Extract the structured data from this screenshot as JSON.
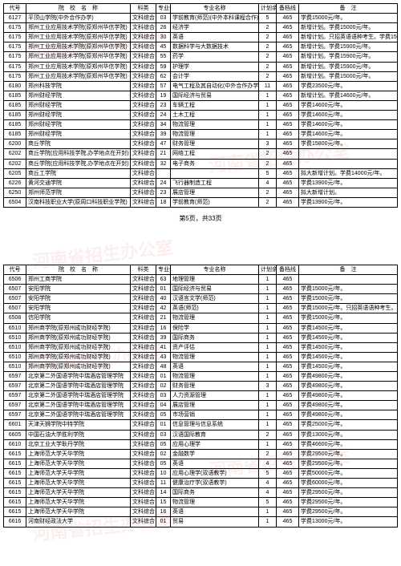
{
  "headers": {
    "code": "代号",
    "school": "院　校　名　称",
    "subject": "科类",
    "major_code": "专业代号",
    "major_name": "专业名称",
    "plan": "计划余额",
    "line": "备档线",
    "note": "备　注"
  },
  "pager": "第5页，共33页",
  "watermark_text": "河南省招生办公室",
  "table1": [
    {
      "code": "6127",
      "school": "平顶山学院(中外合作办学)",
      "sub": "文科综合",
      "mc": "03",
      "mn": "学前教育(师范)(中外本科课程合作)",
      "plan": "5",
      "line": "465",
      "note": "学费15000元/年。"
    },
    {
      "code": "6175",
      "school": "郑州工业应用技术学院(原郑州华信学院)",
      "sub": "文科综合",
      "mc": "26",
      "mn": "经济学",
      "plan": "2",
      "line": "465",
      "note": "新增计划。学费15000元/年。"
    },
    {
      "code": "6175",
      "school": "郑州工业应用技术学院(原郑州华信学院)",
      "sub": "文科综合",
      "mc": "30",
      "mn": "英语",
      "plan": "2",
      "line": "465",
      "note": "新增计划。只招英语语种考生。学费15000元/年。"
    },
    {
      "code": "6175",
      "school": "郑州工业应用技术学院(原郑州华信学院)",
      "sub": "文科综合",
      "mc": "45",
      "mn": "数据科学与大数据技术",
      "plan": "2",
      "line": "465",
      "note": "新增计划。学费15900元/年。"
    },
    {
      "code": "6175",
      "school": "郑州工业应用技术学院(原郑州华信学院)",
      "sub": "文科综合",
      "mc": "55",
      "mn": "药学",
      "plan": "2",
      "line": "465",
      "note": "新增计划。学费15900元/年。"
    },
    {
      "code": "6175",
      "school": "郑州工业应用技术学院(原郑州华信学院)",
      "sub": "文科综合",
      "mc": "59",
      "mn": "护理学",
      "plan": "2",
      "line": "465",
      "note": "新增计划。学费15900元/年。"
    },
    {
      "code": "6175",
      "school": "郑州工业应用技术学院(原郑州华信学院)",
      "sub": "文科综合",
      "mc": "62",
      "mn": "会计学",
      "plan": "2",
      "line": "465",
      "note": "新增计划。学费15000元/年。"
    },
    {
      "code": "6180",
      "school": "郑州科技学院",
      "sub": "文科综合",
      "mc": "57",
      "mn": "电气工程及其自动化(中外合作办学)",
      "plan": "11",
      "line": "465",
      "note": "学费23500元/年。"
    },
    {
      "code": "6185",
      "school": "郑州财经学院",
      "sub": "文科综合",
      "mc": "19",
      "mn": "国际经济与贸易",
      "plan": "1",
      "line": "465",
      "note": "新增计划。学费14600元/年。"
    },
    {
      "code": "6185",
      "school": "郑州财经学院",
      "sub": "文科综合",
      "mc": "23",
      "mn": "车辆工程",
      "plan": "1",
      "line": "465",
      "note": "学费14600元/年。"
    },
    {
      "code": "6185",
      "school": "郑州财经学院",
      "sub": "文科综合",
      "mc": "24",
      "mn": "土木工程",
      "plan": "1",
      "line": "465",
      "note": "学费14600元/年。"
    },
    {
      "code": "6185",
      "school": "郑州财经学院",
      "sub": "文科综合",
      "mc": "34",
      "mn": "物流管理",
      "plan": "1",
      "line": "465",
      "note": "学费14600元/年。"
    },
    {
      "code": "6185",
      "school": "郑州财经学院",
      "sub": "文科综合",
      "mc": "39",
      "mn": "物流管理",
      "plan": "1",
      "line": "465",
      "note": "学费14600元/年。"
    },
    {
      "code": "6200",
      "school": "商丘学院",
      "sub": "文科综合",
      "mc": "47",
      "mn": "财务管理",
      "plan": "3",
      "line": "465",
      "note": "学费15800元/年。"
    },
    {
      "code": "6202",
      "school": "商丘学院(应用科技学院,办学地点在开封)",
      "sub": "文科综合",
      "mc": "21",
      "mn": "网络工程",
      "plan": "2",
      "line": "465",
      "note": ""
    },
    {
      "code": "6202",
      "school": "商丘学院(应用科技学院,办学地点在开封)",
      "sub": "文科综合",
      "mc": "32",
      "mn": "电子商务",
      "plan": "2",
      "line": "465",
      "note": ""
    },
    {
      "code": "6205",
      "school": "商丘工学院",
      "sub": "文科综合",
      "mc": "",
      "mn": "",
      "plan": "5",
      "line": "465",
      "note": "拟大新增计划。学费14000元/年。"
    },
    {
      "code": "6226",
      "school": "黄河交通学院",
      "sub": "文科综合",
      "mc": "24",
      "mn": "飞行器制造工程",
      "plan": "4",
      "line": "465",
      "note": "学费13900元/年。"
    },
    {
      "code": "6250",
      "school": "郑州师范学院",
      "sub": "文科综合",
      "mc": "23",
      "mn": "展店管理",
      "plan": "2",
      "line": "465",
      "note": "拟大新增计划。"
    },
    {
      "code": "6504",
      "school": "汉南科技职业大学(原周口科技职业学院)",
      "sub": "文科综合",
      "mc": "18",
      "mn": "学前教育(师范)",
      "plan": "2",
      "line": "465",
      "note": "学费13900元/年。"
    }
  ],
  "table2": [
    {
      "code": "6506",
      "school": "郑州工商学院",
      "sub": "文科综合",
      "mc": "63",
      "mn": "地理管理",
      "plan": "1",
      "line": "465",
      "note": ""
    },
    {
      "code": "6507",
      "school": "安阳学院",
      "sub": "文科综合",
      "mc": "01",
      "mn": "国际经济与贸易",
      "plan": "1",
      "line": "465",
      "note": "学费15000元/年。"
    },
    {
      "code": "6507",
      "school": "安阳学院",
      "sub": "文科综合",
      "mc": "40",
      "mn": "汉语言文学(师范)",
      "plan": "1",
      "line": "465",
      "note": "学费15000元/年。"
    },
    {
      "code": "6507",
      "school": "安阳学院",
      "sub": "文科综合",
      "mc": "42",
      "mn": "英语(师范)",
      "plan": "1",
      "line": "465",
      "note": "学费15000元/年。只招英语语种考生。"
    },
    {
      "code": "6508",
      "school": "信阳学院",
      "sub": "文科综合",
      "mc": "21",
      "mn": "物流管理",
      "plan": "1",
      "line": "465",
      "note": "学费15000元/年。"
    },
    {
      "code": "6510",
      "school": "郑州商学院(原郑州成功财经学院)",
      "sub": "文科综合",
      "mc": "16",
      "mn": "保险学",
      "plan": "1",
      "line": "465",
      "note": "学费14500元/年。"
    },
    {
      "code": "6510",
      "school": "郑州商学院(原郑州成功财经学院)",
      "sub": "文科综合",
      "mc": "39",
      "mn": "国际商务",
      "plan": "1",
      "line": "465",
      "note": "学费14500元/年。"
    },
    {
      "code": "6510",
      "school": "郑州商学院(原郑州成功财经学院)",
      "sub": "文科综合",
      "mc": "41",
      "mn": "资产评估",
      "plan": "1",
      "line": "465",
      "note": "学费14500元/年。"
    },
    {
      "code": "6510",
      "school": "郑州商学院(原郑州成功财经学院)",
      "sub": "文科综合",
      "mc": "43",
      "mn": "物流管理",
      "plan": "1",
      "line": "465",
      "note": "学费14500元/年。"
    },
    {
      "code": "6510",
      "school": "郑州商学院(原郑州成功财经学院)",
      "sub": "文科综合",
      "mc": "48",
      "mn": "英语",
      "plan": "1",
      "line": "465",
      "note": "学费14500元/年。"
    },
    {
      "code": "6597",
      "school": "北京第二外国语学院中瑞酒店管理学院",
      "sub": "文科综合",
      "mc": "01",
      "mn": "物流管理",
      "plan": "1",
      "line": "465",
      "note": "学费49800元/年。"
    },
    {
      "code": "6597",
      "school": "北京第二外国语学院中瑞酒店管理学院",
      "sub": "文科综合",
      "mc": "02",
      "mn": "财务管理",
      "plan": "3",
      "line": "465",
      "note": "学费49800元/年。"
    },
    {
      "code": "6597",
      "school": "北京第二外国语学院中瑞酒店管理学院",
      "sub": "文科综合",
      "mc": "03",
      "mn": "人力资源管理",
      "plan": "1",
      "line": "465",
      "note": "学费49800元/年。"
    },
    {
      "code": "6597",
      "school": "北京第二外国语学院中瑞酒店管理学院",
      "sub": "文科综合",
      "mc": "04",
      "mn": "展店管理",
      "plan": "1",
      "line": "465",
      "note": "学费49800元/年。"
    },
    {
      "code": "6597",
      "school": "北京第二外国语学院中瑞酒店管理学院",
      "sub": "文科综合",
      "mc": "05",
      "mn": "市场营销",
      "plan": "1",
      "line": "465",
      "note": "学费49800元/年。"
    },
    {
      "code": "6601",
      "school": "天津天狮学院中特学院",
      "sub": "文科综合",
      "mc": "01",
      "mn": "信息管理与信息系统",
      "plan": "1",
      "line": "465",
      "note": "学费25000元/年。"
    },
    {
      "code": "6605",
      "school": "中国石油大学胜利学院",
      "sub": "文科综合",
      "mc": "03",
      "mn": "汉语国际教育",
      "plan": "2",
      "line": "465",
      "note": "学费13000元/年。"
    },
    {
      "code": "6610",
      "school": "北京工业大学耿丹学院",
      "sub": "文科综合",
      "mc": "05",
      "mn": "应用心理学",
      "plan": "1",
      "line": "465",
      "note": "学费46600元/年。"
    },
    {
      "code": "6615",
      "school": "上海师范大学天华学院",
      "sub": "文科综合",
      "mc": "02",
      "mn": "金融数学",
      "plan": "2",
      "line": "465",
      "note": "学费29500元/年。"
    },
    {
      "code": "6615",
      "school": "上海师范大学天华学院",
      "sub": "文科综合",
      "mc": "05",
      "mn": "英语",
      "plan": "4",
      "line": "465",
      "note": "学费29500元/年。"
    },
    {
      "code": "6615",
      "school": "上海师范大学天华学院",
      "sub": "文科综合",
      "mc": "10",
      "mn": "应用心理学(双语教学)",
      "plan": "5",
      "line": "465",
      "note": "学费50000元/年。"
    },
    {
      "code": "6615",
      "school": "上海师范大学天华学院",
      "sub": "文科综合",
      "mc": "11",
      "mn": "健康治疗学(双语教学)",
      "plan": "4",
      "line": "465",
      "note": "学费60000元/年。"
    },
    {
      "code": "6615",
      "school": "上海师范大学天华学院",
      "sub": "文科综合",
      "mc": "14",
      "mn": "国际商务",
      "plan": "4",
      "line": "465",
      "note": "学费29500元/年。"
    },
    {
      "code": "6615",
      "school": "上海师范大学天华学院",
      "sub": "文科综合",
      "mc": "15",
      "mn": "物流管理",
      "plan": "5",
      "line": "465",
      "note": "学费29500元/年。"
    },
    {
      "code": "6615",
      "school": "上海师范大学天华学院",
      "sub": "文科综合",
      "mc": "16",
      "mn": "英语",
      "plan": "1",
      "line": "465",
      "note": "学费29500元/年。"
    },
    {
      "code": "6616",
      "school": "河南财经政法大学",
      "sub": "文科综合",
      "mc": "01",
      "mn": "贸易",
      "plan": "1",
      "line": "465",
      "note": "学费13000元/年。"
    }
  ]
}
